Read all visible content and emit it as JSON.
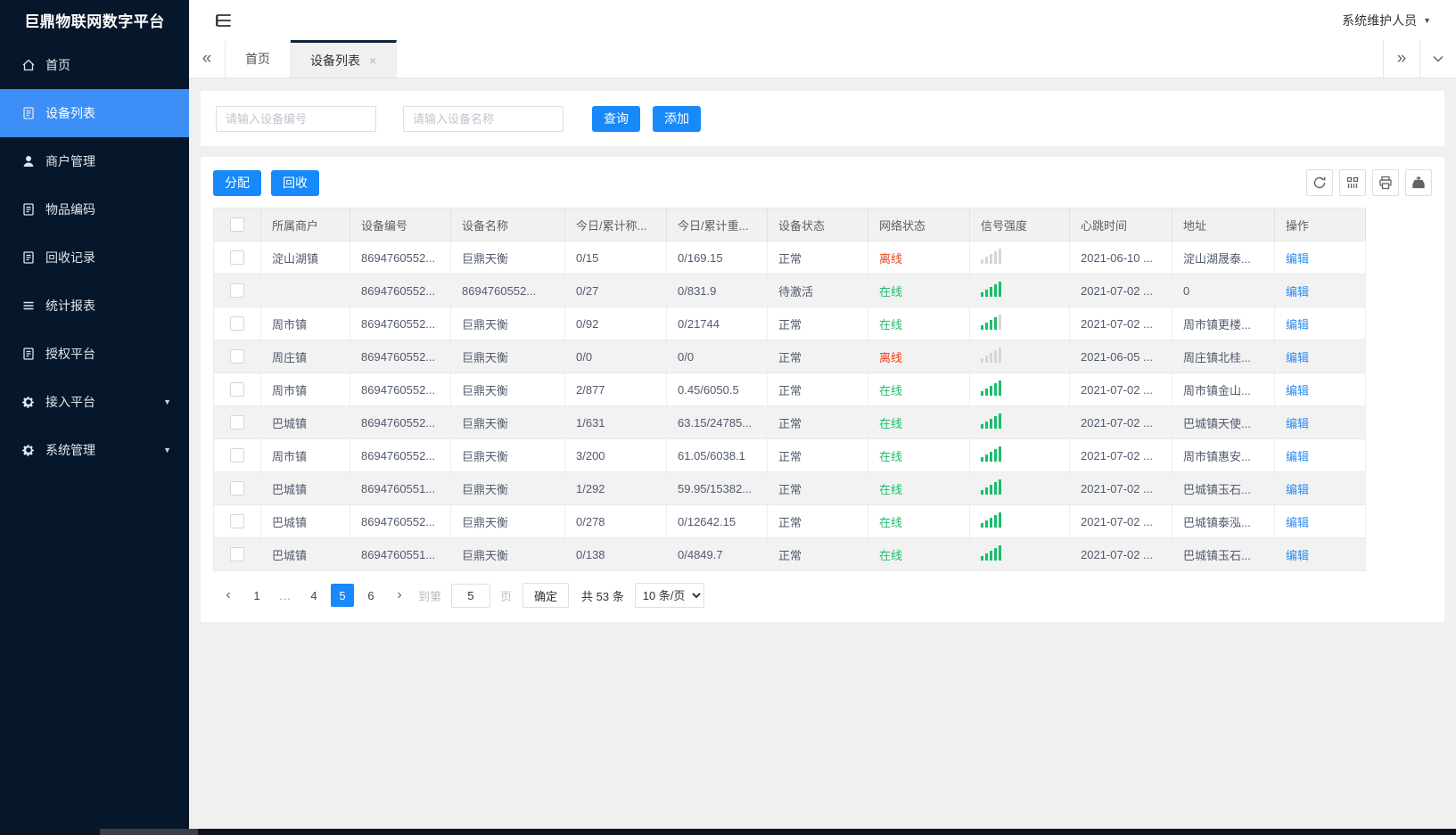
{
  "app": {
    "title": "巨鼎物联网数字平台",
    "user": "系统维护人员"
  },
  "sidebar": {
    "items": [
      {
        "label": "首页",
        "icon": "home-icon",
        "active": false,
        "caret": false
      },
      {
        "label": "设备列表",
        "icon": "doc-icon",
        "active": true,
        "caret": false
      },
      {
        "label": "商户管理",
        "icon": "user-icon",
        "active": false,
        "caret": false
      },
      {
        "label": "物品编码",
        "icon": "doc-icon",
        "active": false,
        "caret": false
      },
      {
        "label": "回收记录",
        "icon": "doc-icon",
        "active": false,
        "caret": false
      },
      {
        "label": "统计报表",
        "icon": "lines-icon",
        "active": false,
        "caret": false
      },
      {
        "label": "授权平台",
        "icon": "doc-icon",
        "active": false,
        "caret": false
      },
      {
        "label": "接入平台",
        "icon": "gear-icon",
        "active": false,
        "caret": true
      },
      {
        "label": "系统管理",
        "icon": "gear-icon",
        "active": false,
        "caret": true
      }
    ]
  },
  "tabs": [
    {
      "label": "首页",
      "active": false,
      "closable": false
    },
    {
      "label": "设备列表",
      "active": true,
      "closable": true
    }
  ],
  "search": {
    "code_placeholder": "请输入设备编号",
    "name_placeholder": "请输入设备名称",
    "query_label": "查询",
    "add_label": "添加"
  },
  "toolbar": {
    "assign_label": "分配",
    "recycle_label": "回收",
    "icons": [
      "refresh-icon",
      "columns-icon",
      "print-icon",
      "export-icon"
    ]
  },
  "table": {
    "columns": [
      "所属商户",
      "设备编号",
      "设备名称",
      "今日/累计称...",
      "今日/累计重...",
      "设备状态",
      "网络状态",
      "信号强度",
      "心跳时间",
      "地址",
      "操作"
    ],
    "rows": [
      {
        "merchant": "淀山湖镇",
        "code": "8694760552...",
        "name": "巨鼎天衡",
        "count": "0/15",
        "weight": "0/169.15",
        "device_status": "正常",
        "network_status": "离线",
        "online": false,
        "signal": 0,
        "heartbeat": "2021-06-10 ...",
        "address": "淀山湖晟泰...",
        "action": "编辑"
      },
      {
        "merchant": "",
        "code": "8694760552...",
        "name": "8694760552...",
        "count": "0/27",
        "weight": "0/831.9",
        "device_status": "待激活",
        "network_status": "在线",
        "online": true,
        "signal": 5,
        "heartbeat": "2021-07-02 ...",
        "address": "0",
        "action": "编辑"
      },
      {
        "merchant": "周市镇",
        "code": "8694760552...",
        "name": "巨鼎天衡",
        "count": "0/92",
        "weight": "0/21744",
        "device_status": "正常",
        "network_status": "在线",
        "online": true,
        "signal": 4,
        "heartbeat": "2021-07-02 ...",
        "address": "周市镇更楼...",
        "action": "编辑"
      },
      {
        "merchant": "周庄镇",
        "code": "8694760552...",
        "name": "巨鼎天衡",
        "count": "0/0",
        "weight": "0/0",
        "device_status": "正常",
        "network_status": "离线",
        "online": false,
        "signal": 0,
        "heartbeat": "2021-06-05 ...",
        "address": "周庄镇北桂...",
        "action": "编辑"
      },
      {
        "merchant": "周市镇",
        "code": "8694760552...",
        "name": "巨鼎天衡",
        "count": "2/877",
        "weight": "0.45/6050.5",
        "device_status": "正常",
        "network_status": "在线",
        "online": true,
        "signal": 5,
        "heartbeat": "2021-07-02 ...",
        "address": "周市镇金山...",
        "action": "编辑"
      },
      {
        "merchant": "巴城镇",
        "code": "8694760552...",
        "name": "巨鼎天衡",
        "count": "1/631",
        "weight": "63.15/24785...",
        "device_status": "正常",
        "network_status": "在线",
        "online": true,
        "signal": 5,
        "heartbeat": "2021-07-02 ...",
        "address": "巴城镇天使...",
        "action": "编辑"
      },
      {
        "merchant": "周市镇",
        "code": "8694760552...",
        "name": "巨鼎天衡",
        "count": "3/200",
        "weight": "61.05/6038.1",
        "device_status": "正常",
        "network_status": "在线",
        "online": true,
        "signal": 5,
        "heartbeat": "2021-07-02 ...",
        "address": "周市镇惠安...",
        "action": "编辑"
      },
      {
        "merchant": "巴城镇",
        "code": "8694760551...",
        "name": "巨鼎天衡",
        "count": "1/292",
        "weight": "59.95/15382...",
        "device_status": "正常",
        "network_status": "在线",
        "online": true,
        "signal": 5,
        "heartbeat": "2021-07-02 ...",
        "address": "巴城镇玉石...",
        "action": "编辑"
      },
      {
        "merchant": "巴城镇",
        "code": "8694760552...",
        "name": "巨鼎天衡",
        "count": "0/278",
        "weight": "0/12642.15",
        "device_status": "正常",
        "network_status": "在线",
        "online": true,
        "signal": 5,
        "heartbeat": "2021-07-02 ...",
        "address": "巴城镇泰泓...",
        "action": "编辑"
      },
      {
        "merchant": "巴城镇",
        "code": "8694760551...",
        "name": "巨鼎天衡",
        "count": "0/138",
        "weight": "0/4849.7",
        "device_status": "正常",
        "network_status": "在线",
        "online": true,
        "signal": 5,
        "heartbeat": "2021-07-02 ...",
        "address": "巴城镇玉石...",
        "action": "编辑"
      }
    ]
  },
  "pagination": {
    "pages": [
      "1",
      "...",
      "4",
      "5",
      "6"
    ],
    "active": "5",
    "goto_label": "到第",
    "goto_value": "5",
    "page_label": "页",
    "confirm_label": "确定",
    "total_label": "共 53 条",
    "size_label": "10 条/页"
  },
  "colors": {
    "accent": "#1789f8",
    "sidebar_bg": "#06172b",
    "sidebar_active": "#3e8ef7",
    "green": "#19be6b",
    "red": "#ed3f14",
    "link": "#2d8cf0"
  }
}
